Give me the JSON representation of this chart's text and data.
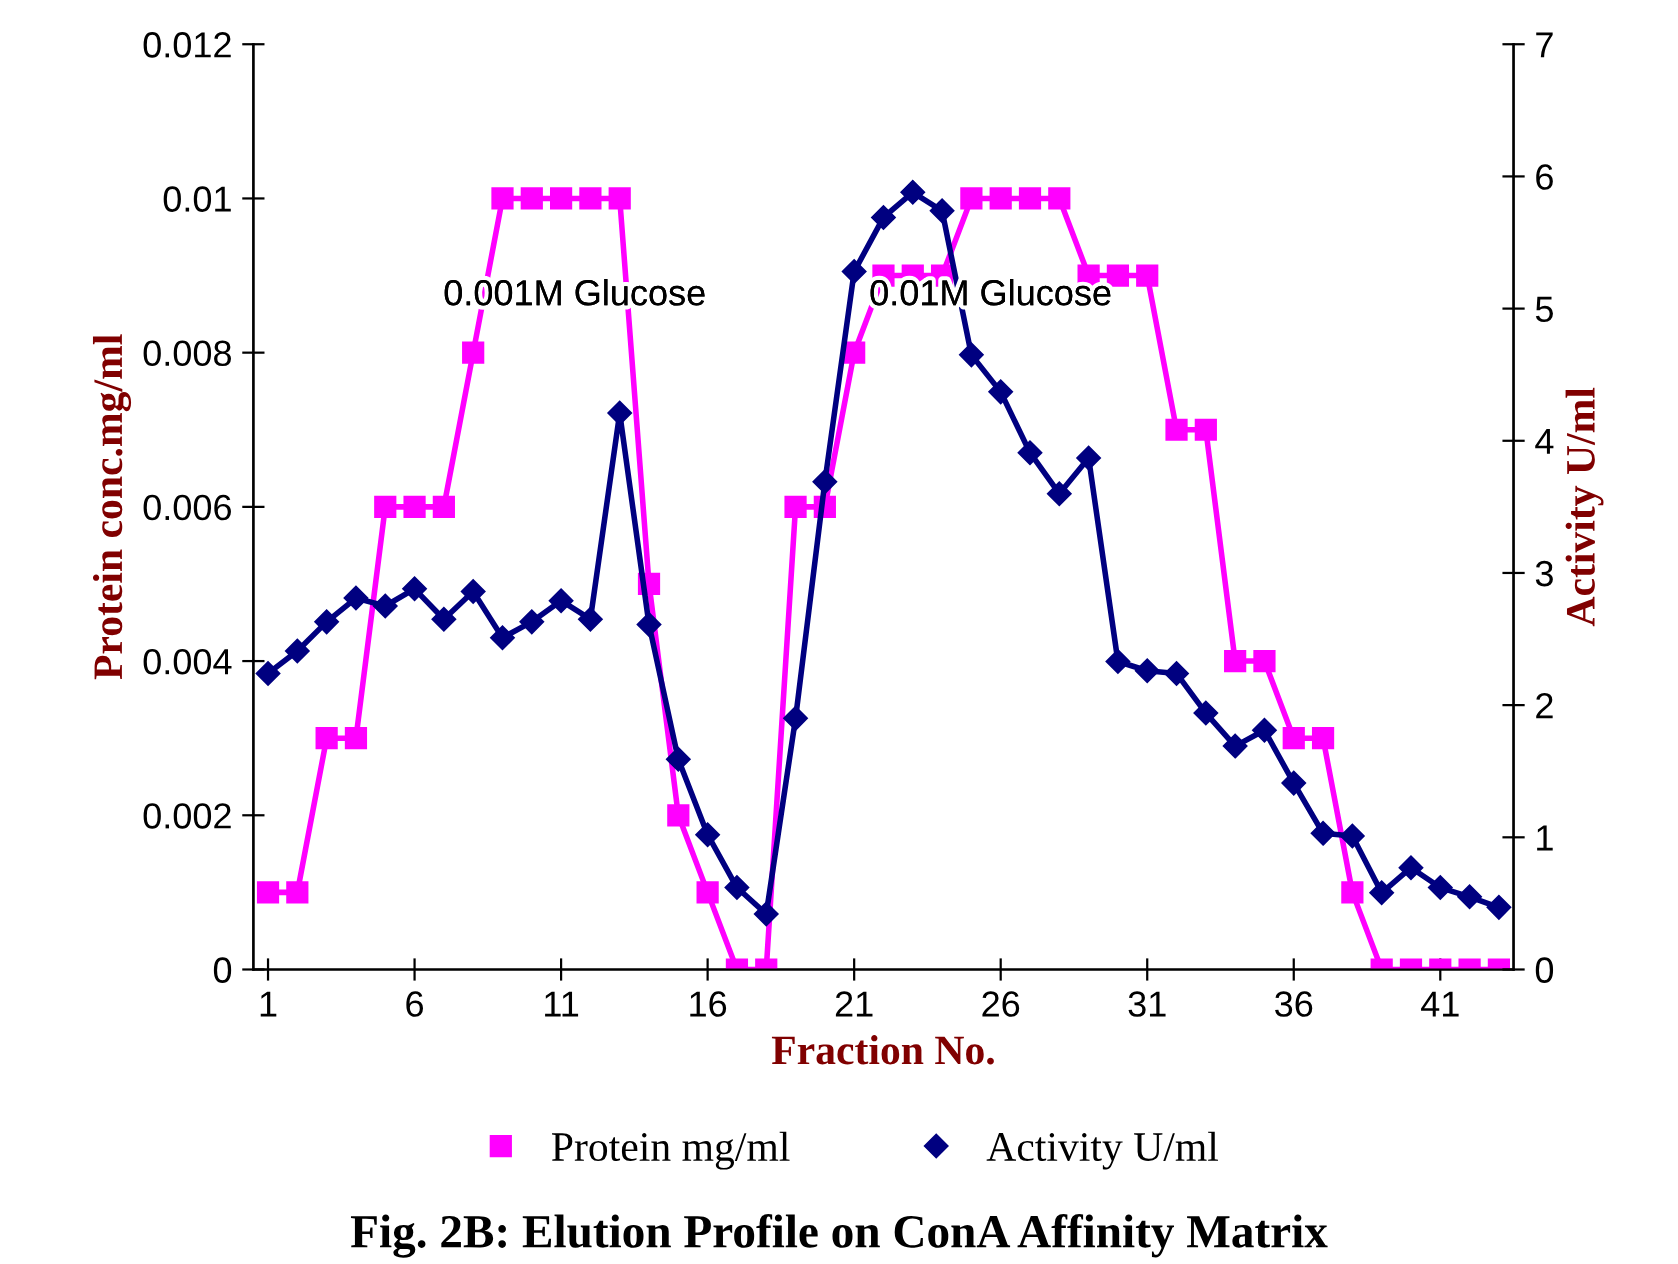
{
  "chart_data": {
    "type": "line",
    "title": "Fig. 2B: Elution Profile on ConA Affinity Matrix",
    "xlabel": "Fraction No.",
    "ylabel": "Protein conc.mg/ml",
    "y2label": "Activity U/ml",
    "x": [
      1,
      2,
      3,
      4,
      5,
      6,
      7,
      8,
      9,
      10,
      11,
      12,
      13,
      14,
      15,
      16,
      17,
      18,
      19,
      20,
      21,
      22,
      23,
      24,
      25,
      26,
      27,
      28,
      29,
      30,
      31,
      32,
      33,
      34,
      35,
      36,
      37,
      38,
      39,
      40,
      41,
      42,
      43
    ],
    "series": [
      {
        "name": "Protein mg/ml",
        "color": "#ff00ff",
        "marker": "square",
        "values": [
          0.001,
          0.001,
          0.003,
          0.003,
          0.006,
          0.006,
          0.006,
          0.008,
          0.01,
          0.01,
          0.01,
          0.01,
          0.01,
          0.005,
          0.002,
          0.001,
          0,
          0,
          0.006,
          0.006,
          0.008,
          0.009,
          0.009,
          0.009,
          0.01,
          0.01,
          0.01,
          0.01,
          0.009,
          0.009,
          0.009,
          0.007,
          0.007,
          0.004,
          0.004,
          0.003,
          0.003,
          0.001,
          0,
          0,
          0,
          0,
          0
        ]
      },
      {
        "name": "Activity U/ml",
        "color": "#000080",
        "marker": "diamond",
        "axis": "y2",
        "values": [
          2.24,
          2.41,
          2.63,
          2.81,
          2.75,
          2.88,
          2.65,
          2.86,
          2.51,
          2.63,
          2.79,
          2.65,
          4.21,
          2.61,
          1.59,
          1.02,
          0.62,
          0.42,
          1.9,
          3.69,
          5.28,
          5.69,
          5.88,
          5.74,
          4.65,
          4.37,
          3.91,
          3.6,
          3.87,
          2.33,
          2.26,
          2.24,
          1.94,
          1.69,
          1.81,
          1.41,
          1.03,
          1.01,
          0.58,
          0.77,
          0.62,
          0.55,
          0.47
        ]
      }
    ],
    "xlim": [
      0.5,
      43.5
    ],
    "xticks": [
      1,
      6,
      11,
      16,
      21,
      26,
      31,
      36,
      41
    ],
    "ylim": [
      0,
      0.012
    ],
    "yticks": [
      0,
      0.002,
      0.004,
      0.006,
      0.008,
      0.01,
      0.012
    ],
    "y2lim": [
      0,
      7
    ],
    "y2ticks": [
      0,
      1,
      2,
      3,
      4,
      5,
      6,
      7
    ],
    "annotations": [
      "0.001M Glucose",
      "0.01M Glucose"
    ],
    "legend": "bottom",
    "grid": false,
    "line_style": "solid"
  }
}
